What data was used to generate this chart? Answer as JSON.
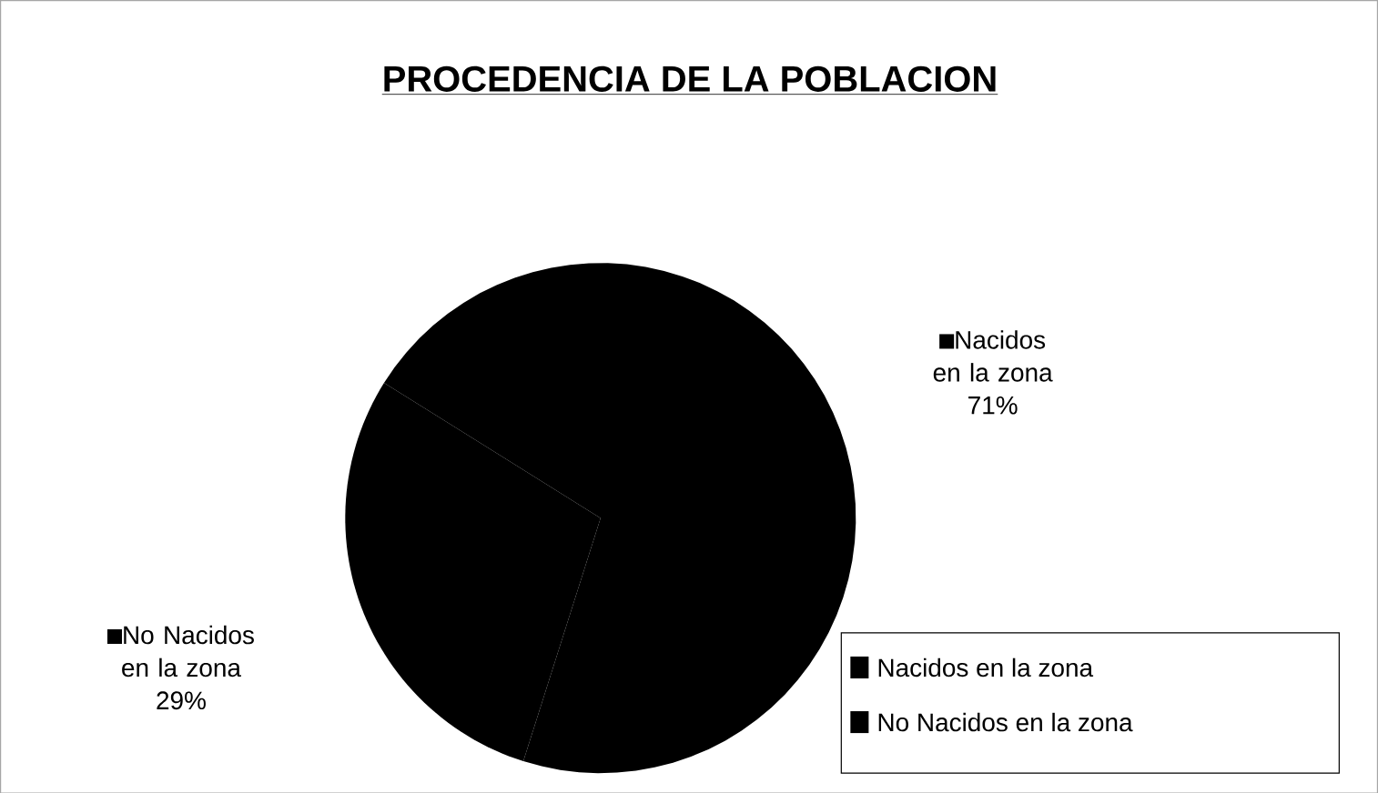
{
  "chart_data": {
    "type": "pie",
    "title": "PROCEDENCIA DE LA POBLACION",
    "categories": [
      "Nacidos en la zona",
      "No Nacidos en la zona"
    ],
    "values": [
      71,
      29
    ],
    "colors": [
      "#000000",
      "#000000"
    ],
    "value_labels": [
      "71%",
      "29%"
    ],
    "legend": "bottom right"
  }
}
